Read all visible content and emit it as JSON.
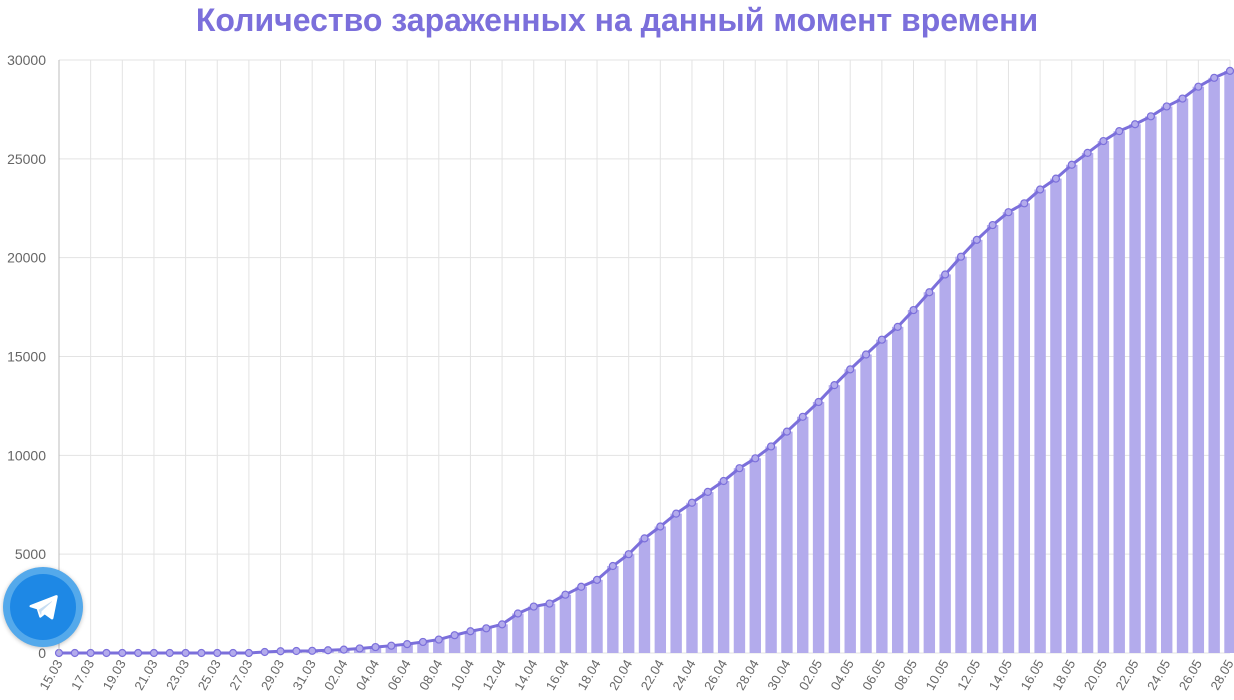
{
  "chart_data": {
    "type": "bar",
    "title": "Количество зараженных на данный момент времени",
    "xlabel": "",
    "ylabel": "",
    "ylim": [
      0,
      30000
    ],
    "yticks": [
      0,
      5000,
      10000,
      15000,
      20000,
      25000,
      30000
    ],
    "grid": true,
    "overlay_line": true,
    "colors": {
      "bar": "#b3abec",
      "line": "#7b6fdb",
      "title": "#7b6fdb",
      "grid": "#e3e3e3",
      "axis": "#666666"
    },
    "categories": [
      "15.03",
      "16.03",
      "17.03",
      "18.03",
      "19.03",
      "20.03",
      "21.03",
      "22.03",
      "23.03",
      "24.03",
      "25.03",
      "26.03",
      "27.03",
      "28.03",
      "29.03",
      "30.03",
      "31.03",
      "01.04",
      "02.04",
      "03.04",
      "04.04",
      "05.04",
      "06.04",
      "07.04",
      "08.04",
      "09.04",
      "10.04",
      "11.04",
      "12.04",
      "13.04",
      "14.04",
      "15.04",
      "16.04",
      "17.04",
      "18.04",
      "19.04",
      "20.04",
      "21.04",
      "22.04",
      "23.04",
      "24.04",
      "25.04",
      "26.04",
      "27.04",
      "28.04",
      "29.04",
      "30.04",
      "01.05",
      "02.05",
      "03.05",
      "04.05",
      "05.05",
      "06.05",
      "07.05",
      "08.05",
      "09.05",
      "10.05",
      "11.05",
      "12.05",
      "13.05",
      "14.05",
      "15.05",
      "16.05",
      "17.05",
      "18.05",
      "19.05",
      "20.05",
      "21.05",
      "22.05",
      "23.05",
      "24.05",
      "25.05",
      "26.05",
      "27.05",
      "28.05"
    ],
    "tick_labels": [
      "15.03",
      "17.03",
      "19.03",
      "21.03",
      "23.03",
      "25.03",
      "27.03",
      "29.03",
      "31.03",
      "02.04",
      "04.04",
      "06.04",
      "08.04",
      "10.04",
      "12.04",
      "14.04",
      "16.04",
      "18.04",
      "20.04",
      "22.04",
      "24.04",
      "26.04",
      "28.04",
      "30.04",
      "02.05",
      "04.05",
      "06.05",
      "08.05",
      "10.05",
      "12.05",
      "14.05",
      "16.05",
      "18.05",
      "20.05",
      "22.05",
      "24.05",
      "26.05",
      "28.05"
    ],
    "values": [
      0,
      0,
      0,
      0,
      0,
      0,
      0,
      0,
      0,
      0,
      0,
      0,
      0,
      50,
      90,
      100,
      110,
      140,
      170,
      230,
      300,
      370,
      450,
      560,
      680,
      900,
      1100,
      1250,
      1450,
      2000,
      2350,
      2500,
      2950,
      3350,
      3700,
      4400,
      5000,
      5800,
      6400,
      7050,
      7600,
      8150,
      8700,
      9350,
      9850,
      10450,
      11200,
      11950,
      12700,
      13550,
      14350,
      15100,
      15850,
      16500,
      17350,
      18250,
      19150,
      20050,
      20900,
      21650,
      22300,
      22750,
      23450,
      24000,
      24700,
      25300,
      25900,
      26400,
      26750,
      27150,
      27650,
      28050,
      28650,
      29100,
      29450
    ]
  }
}
